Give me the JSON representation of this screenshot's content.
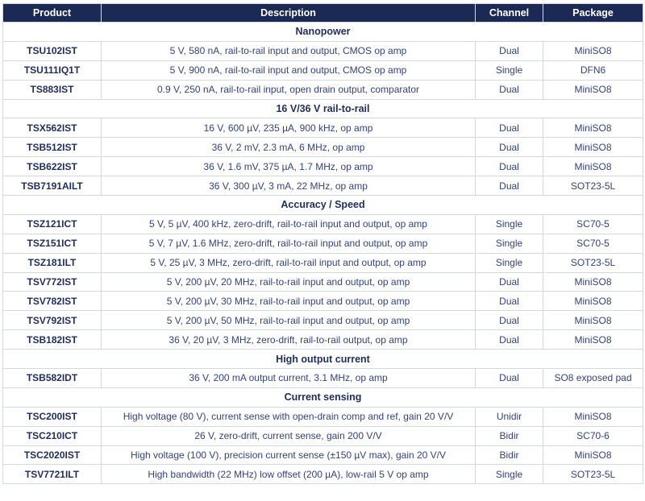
{
  "colors": {
    "header_bg": "#1b2a55",
    "header_text": "#ffffff",
    "body_text": "#33437e",
    "strong_text": "#1f2d5c",
    "border": "#d3dadd"
  },
  "table": {
    "columns": [
      {
        "label": "Product"
      },
      {
        "label": "Description"
      },
      {
        "label": "Channel"
      },
      {
        "label": "Package"
      }
    ],
    "sections": [
      {
        "title": "Nanopower",
        "rows": [
          {
            "product": "TSU102IST",
            "description": "5 V, 580 nA, rail-to-rail input and output, CMOS op amp",
            "channel": "Dual",
            "package": "MiniSO8"
          },
          {
            "product": "TSU111IQ1T",
            "description": "5 V, 900 nA, rail-to-rail input and output, CMOS op amp",
            "channel": "Single",
            "package": "DFN6"
          },
          {
            "product": "TS883IST",
            "description": "0.9 V, 250 nA, rail-to-rail input, open drain output, comparator",
            "channel": "Dual",
            "package": "MiniSO8"
          }
        ]
      },
      {
        "title": "16 V/36 V rail-to-rail",
        "rows": [
          {
            "product": "TSX562IST",
            "description": "16 V, 600 µV, 235 µA, 900 kHz, op amp",
            "channel": "Dual",
            "package": "MiniSO8"
          },
          {
            "product": "TSB512IST",
            "description": "36 V, 2 mV, 2.3 mA, 6 MHz, op amp",
            "channel": "Dual",
            "package": "MiniSO8"
          },
          {
            "product": "TSB622IST",
            "description": "36 V, 1.6 mV, 375 µA, 1.7 MHz, op amp",
            "channel": "Dual",
            "package": "MiniSO8"
          },
          {
            "product": "TSB7191AILT",
            "description": "36 V, 300 µV, 3 mA, 22 MHz, op amp",
            "channel": "Dual",
            "package": "SOT23-5L"
          }
        ]
      },
      {
        "title": "Accuracy / Speed",
        "rows": [
          {
            "product": "TSZ121ICT",
            "description": "5 V, 5 µV, 400 kHz, zero-drift, rail-to-rail input and output, op amp",
            "channel": "Single",
            "package": "SC70-5"
          },
          {
            "product": "TSZ151ICT",
            "description": "5 V, 7 µV, 1.6 MHz, zero-drift, rail-to-rail input and output, op amp",
            "channel": "Single",
            "package": "SC70-5"
          },
          {
            "product": "TSZ181ILT",
            "description": "5 V, 25 µV, 3 MHz, zero-drift, rail-to-rail input and output, op amp",
            "channel": "Single",
            "package": "SOT23-5L"
          },
          {
            "product": "TSV772IST",
            "description": "5 V, 200 µV, 20 MHz, rail-to-rail input and output, op amp",
            "channel": "Dual",
            "package": "MiniSO8"
          },
          {
            "product": "TSV782IST",
            "description": "5 V, 200 µV, 30 MHz, rail-to-rail input and output, op amp",
            "channel": "Dual",
            "package": "MiniSO8"
          },
          {
            "product": "TSV792IST",
            "description": "5 V, 200 µV, 50 MHz, rail-to-rail input and output, op amp",
            "channel": "Dual",
            "package": "MiniSO8"
          },
          {
            "product": "TSB182IST",
            "description": "36 V, 20 µV, 3 MHz, zero-drift, rail-to-rail output, op amp",
            "channel": "Dual",
            "package": "MiniSO8"
          }
        ]
      },
      {
        "title": "High output current",
        "rows": [
          {
            "product": "TSB582IDT",
            "description": "36 V, 200 mA output current, 3.1 MHz, op amp",
            "channel": "Dual",
            "package": "SO8 exposed pad"
          }
        ]
      },
      {
        "title": "Current sensing",
        "rows": [
          {
            "product": "TSC200IST",
            "description": "High voltage (80 V), current sense with open-drain comp and ref, gain 20 V/V",
            "channel": "Unidir",
            "package": "MiniSO8"
          },
          {
            "product": "TSC210ICT",
            "description": "26 V, zero-drift, current sense, gain 200 V/V",
            "channel": "Bidir",
            "package": "SC70-6"
          },
          {
            "product": "TSC2020IST",
            "description": "High voltage (100 V), precision current sense (±150 µV max), gain 20 V/V",
            "channel": "Bidir",
            "package": "MiniSO8"
          },
          {
            "product": "TSV7721ILT",
            "description": "High bandwidth (22 MHz) low offset (200 µA), low-rail 5 V op amp",
            "channel": "Single",
            "package": "SOT23-5L"
          }
        ]
      }
    ]
  }
}
